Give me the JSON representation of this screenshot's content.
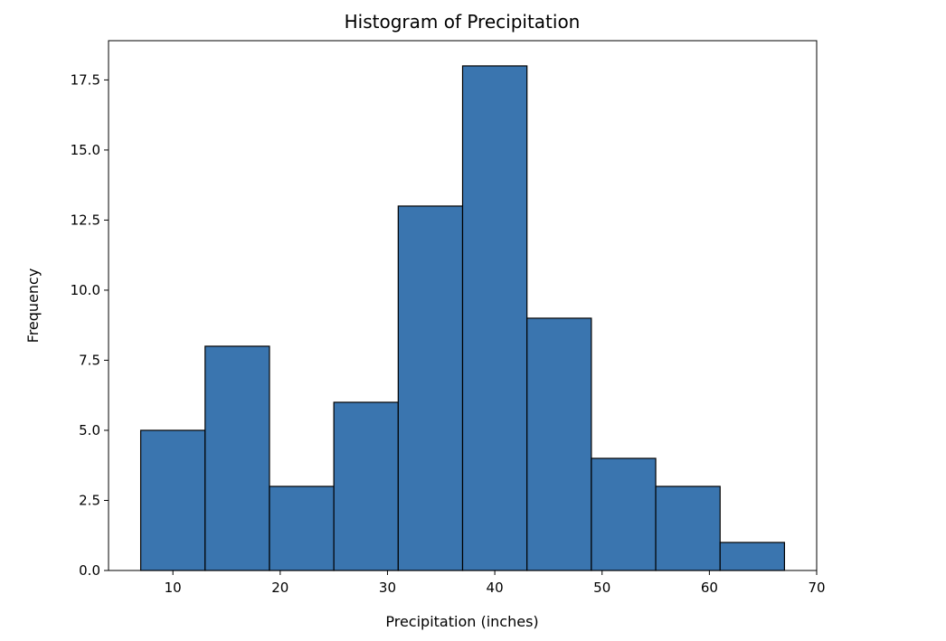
{
  "chart_data": {
    "type": "bar",
    "title": "Histogram of Precipitation",
    "xlabel": "Precipitation (inches)",
    "ylabel": "Frequency",
    "bin_edges": [
      7,
      13,
      19,
      25,
      31,
      37,
      43,
      49,
      55,
      61,
      67
    ],
    "values": [
      5,
      8,
      3,
      6,
      13,
      18,
      9,
      4,
      3,
      1
    ],
    "xlim": [
      4,
      70
    ],
    "ylim": [
      0,
      18.9
    ],
    "xticks": [
      10,
      20,
      30,
      40,
      50,
      60,
      70
    ],
    "yticks": [
      0,
      2.5,
      5,
      7.5,
      10,
      12.5,
      15,
      17.5
    ],
    "xtick_labels": [
      "10",
      "20",
      "30",
      "40",
      "50",
      "60",
      "70"
    ],
    "ytick_labels": [
      "0.0",
      "2.5",
      "5.0",
      "7.5",
      "10.0",
      "12.5",
      "15.0",
      "17.5"
    ],
    "grid": false,
    "bar_color": "#3a75af",
    "edge_color": "#000000"
  }
}
